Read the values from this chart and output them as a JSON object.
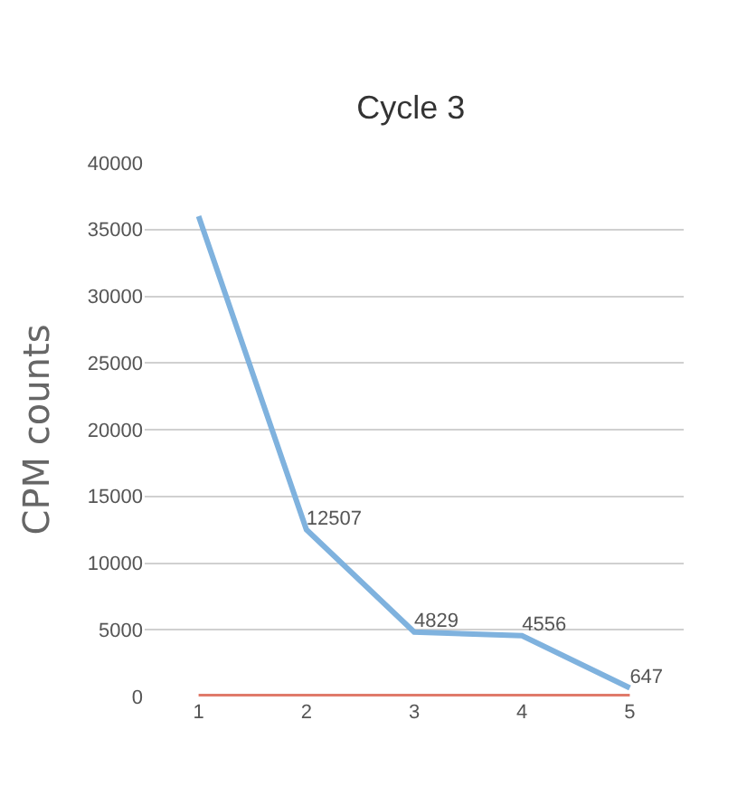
{
  "chart_data": {
    "type": "line",
    "title": "Cycle 3",
    "ylabel": "CPM counts",
    "categories": [
      "1",
      "2",
      "3",
      "4",
      "5"
    ],
    "series": [
      {
        "color": "#7fb2de",
        "values": [
          36000,
          12507,
          4829,
          4556,
          647
        ],
        "value_labels": [
          null,
          "12507",
          "4829",
          "4556",
          "647"
        ]
      },
      {
        "color": "#e07a6a",
        "values": [
          0,
          0,
          0,
          0,
          0
        ]
      }
    ],
    "ylim": [
      0,
      40000
    ],
    "yticks": [
      0,
      5000,
      10000,
      15000,
      20000,
      25000,
      30000,
      35000,
      40000
    ],
    "grid": "y",
    "marker": "none",
    "line_style": "solid"
  }
}
